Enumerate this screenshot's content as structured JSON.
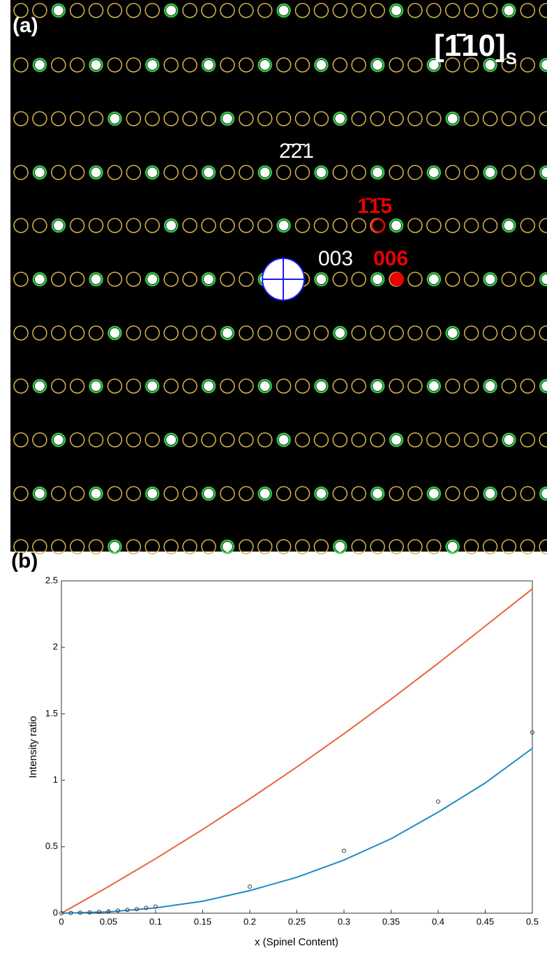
{
  "panel_a": {
    "label": "(a)",
    "zone_axis": "[1̄10]",
    "zone_axis_sub": "S",
    "spots": [
      "2̄2̄1",
      "1̄1̄5",
      "003",
      "006"
    ]
  },
  "chart_data": {
    "type": "line",
    "panel_label": "(b)",
    "xlabel": "x (Spinel Content)",
    "ylabel": "Intensity ratio",
    "xlim": [
      0,
      0.5
    ],
    "ylim": [
      0,
      2.5
    ],
    "xticks": [
      0,
      0.05,
      0.1,
      0.15,
      0.2,
      0.25,
      0.3,
      0.35,
      0.4,
      0.45,
      0.5
    ],
    "yticks": [
      0,
      0.5,
      1,
      1.5,
      2,
      2.5
    ],
    "series": [
      {
        "type": "line",
        "color": "#e8643a",
        "x": [
          0,
          0.05,
          0.1,
          0.15,
          0.2,
          0.25,
          0.3,
          0.35,
          0.4,
          0.45,
          0.5
        ],
        "values": [
          0,
          0.2,
          0.41,
          0.63,
          0.86,
          1.1,
          1.35,
          1.61,
          1.88,
          2.16,
          2.44
        ]
      },
      {
        "type": "line",
        "color": "#1f8ac8",
        "x": [
          0,
          0.05,
          0.1,
          0.15,
          0.2,
          0.25,
          0.3,
          0.35,
          0.4,
          0.45,
          0.5
        ],
        "values": [
          0,
          0.01,
          0.04,
          0.09,
          0.17,
          0.27,
          0.4,
          0.56,
          0.76,
          0.98,
          1.24
        ]
      },
      {
        "type": "scatter",
        "color": "#333333",
        "x": [
          0,
          0.01,
          0.02,
          0.03,
          0.04,
          0.05,
          0.06,
          0.07,
          0.08,
          0.09,
          0.1,
          0.2,
          0.3,
          0.4,
          0.5
        ],
        "values": [
          0,
          0.002,
          0.004,
          0.006,
          0.01,
          0.013,
          0.02,
          0.025,
          0.03,
          0.04,
          0.05,
          0.2,
          0.47,
          0.84,
          1.36
        ]
      }
    ]
  }
}
